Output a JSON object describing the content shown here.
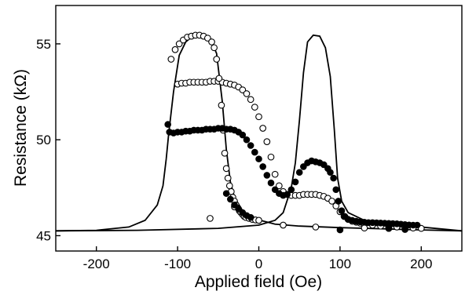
{
  "chart_data": {
    "type": "scatter",
    "title": "",
    "xlabel": "Applied field (Oe)",
    "ylabel": "Resistance (kΩ)",
    "xlim": [
      -250,
      250
    ],
    "ylim": [
      44.2,
      57
    ],
    "xticks": [
      -200,
      -100,
      0,
      100,
      200
    ],
    "yticks": [
      45,
      50,
      55
    ],
    "grid": false,
    "legend": "none",
    "series": [
      {
        "kind": "line",
        "points": [
          [
            -250,
            45.25
          ],
          [
            -200,
            45.28
          ],
          [
            -160,
            45.45
          ],
          [
            -140,
            45.8
          ],
          [
            -125,
            46.6
          ],
          [
            -118,
            47.6
          ],
          [
            -114,
            49.0
          ],
          [
            -111,
            50.3
          ],
          [
            -105,
            52.5
          ],
          [
            -98,
            54.4
          ],
          [
            -90,
            55.1
          ],
          [
            -80,
            55.45
          ],
          [
            -70,
            55.5
          ],
          [
            -60,
            55.3
          ],
          [
            -52,
            54.5
          ],
          [
            -45,
            52.0
          ],
          [
            -40,
            49.5
          ],
          [
            -35,
            47.8
          ],
          [
            -30,
            47.0
          ],
          [
            -20,
            46.3
          ],
          [
            -10,
            46.0
          ],
          [
            0,
            45.82
          ],
          [
            20,
            45.6
          ],
          [
            50,
            45.5
          ],
          [
            100,
            45.42
          ],
          [
            150,
            45.36
          ],
          [
            200,
            45.3
          ],
          [
            250,
            45.25
          ]
        ]
      },
      {
        "kind": "line",
        "points": [
          [
            -250,
            45.25
          ],
          [
            -150,
            45.28
          ],
          [
            -50,
            45.38
          ],
          [
            0,
            45.55
          ],
          [
            20,
            45.8
          ],
          [
            30,
            46.2
          ],
          [
            40,
            47.5
          ],
          [
            45,
            48.8
          ],
          [
            50,
            51.0
          ],
          [
            55,
            53.5
          ],
          [
            60,
            55.1
          ],
          [
            67,
            55.45
          ],
          [
            75,
            55.4
          ],
          [
            82,
            54.8
          ],
          [
            88,
            53.3
          ],
          [
            93,
            50.5
          ],
          [
            97,
            48.0
          ],
          [
            102,
            46.8
          ],
          [
            110,
            46.2
          ],
          [
            130,
            45.8
          ],
          [
            160,
            45.6
          ],
          [
            200,
            45.45
          ],
          [
            250,
            45.25
          ]
        ]
      },
      {
        "kind": "open-markers",
        "points": [
          [
            -100,
            52.9
          ],
          [
            -95,
            52.95
          ],
          [
            -90,
            52.95
          ],
          [
            -85,
            53.0
          ],
          [
            -80,
            53.0
          ],
          [
            -75,
            53.0
          ],
          [
            -70,
            53.0
          ],
          [
            -65,
            53.0
          ],
          [
            -60,
            53.05
          ],
          [
            -55,
            53.05
          ],
          [
            -50,
            53.05
          ],
          [
            -45,
            53.0
          ],
          [
            -40,
            52.95
          ],
          [
            -35,
            52.9
          ],
          [
            -30,
            52.85
          ],
          [
            -25,
            52.75
          ],
          [
            -20,
            52.6
          ],
          [
            -15,
            52.4
          ],
          [
            -10,
            52.1
          ],
          [
            -5,
            51.7
          ],
          [
            0,
            51.2
          ],
          [
            5,
            50.6
          ],
          [
            10,
            49.9
          ],
          [
            15,
            49.1
          ],
          [
            20,
            48.2
          ],
          [
            25,
            47.6
          ],
          [
            30,
            47.3
          ],
          [
            35,
            47.15
          ],
          [
            40,
            47.1
          ],
          [
            45,
            47.1
          ],
          [
            50,
            47.1
          ],
          [
            55,
            47.15
          ],
          [
            60,
            47.15
          ],
          [
            65,
            47.15
          ],
          [
            70,
            47.15
          ],
          [
            75,
            47.1
          ],
          [
            80,
            47.05
          ],
          [
            85,
            46.95
          ],
          [
            90,
            46.8
          ],
          [
            95,
            46.55
          ],
          [
            100,
            46.25
          ],
          [
            105,
            46.0
          ],
          [
            110,
            45.85
          ],
          [
            115,
            45.75
          ],
          [
            120,
            45.7
          ],
          [
            125,
            45.65
          ],
          [
            130,
            45.6
          ],
          [
            140,
            45.55
          ],
          [
            150,
            45.5
          ],
          [
            160,
            45.45
          ],
          [
            170,
            45.45
          ],
          [
            180,
            45.42
          ],
          [
            190,
            45.4
          ],
          [
            200,
            45.38
          ],
          [
            -108,
            54.2
          ],
          [
            -103,
            54.7
          ],
          [
            -98,
            55.0
          ],
          [
            -93,
            55.2
          ],
          [
            -88,
            55.35
          ],
          [
            -83,
            55.4
          ],
          [
            -78,
            55.45
          ],
          [
            -73,
            55.45
          ],
          [
            -68,
            55.4
          ],
          [
            -63,
            55.3
          ],
          [
            -58,
            55.1
          ],
          [
            -55,
            54.8
          ],
          [
            -52,
            54.2
          ],
          [
            -49,
            53.2
          ],
          [
            -46,
            51.8
          ],
          [
            -44,
            50.5
          ],
          [
            -42,
            49.3
          ],
          [
            -40,
            48.5
          ],
          [
            -38,
            48.0
          ],
          [
            -36,
            47.6
          ],
          [
            -34,
            47.3
          ],
          [
            -32,
            47.0
          ],
          [
            -30,
            46.8
          ],
          [
            -28,
            46.6
          ],
          [
            -26,
            46.45
          ],
          [
            -24,
            46.3
          ],
          [
            -22,
            46.2
          ],
          [
            -20,
            46.1
          ],
          [
            -18,
            46.0
          ],
          [
            -16,
            45.95
          ],
          [
            -12,
            45.9
          ],
          [
            -8,
            45.85
          ],
          [
            -4,
            45.82
          ],
          [
            0,
            45.8
          ],
          [
            -60,
            45.9
          ],
          [
            -30,
            46.5
          ],
          [
            30,
            45.55
          ],
          [
            70,
            45.45
          ],
          [
            130,
            45.4
          ],
          [
            160,
            45.38
          ]
        ]
      },
      {
        "kind": "filled-markers",
        "points": [
          [
            -112,
            50.8
          ],
          [
            -110,
            50.4
          ],
          [
            -105,
            50.35
          ],
          [
            -100,
            50.4
          ],
          [
            -95,
            50.4
          ],
          [
            -90,
            50.45
          ],
          [
            -85,
            50.45
          ],
          [
            -80,
            50.5
          ],
          [
            -75,
            50.5
          ],
          [
            -70,
            50.5
          ],
          [
            -65,
            50.55
          ],
          [
            -60,
            50.55
          ],
          [
            -55,
            50.55
          ],
          [
            -50,
            50.6
          ],
          [
            -45,
            50.6
          ],
          [
            -40,
            50.55
          ],
          [
            -35,
            50.55
          ],
          [
            -30,
            50.5
          ],
          [
            -25,
            50.4
          ],
          [
            -20,
            50.25
          ],
          [
            -15,
            50.0
          ],
          [
            -10,
            49.7
          ],
          [
            -5,
            49.35
          ],
          [
            0,
            49.0
          ],
          [
            5,
            48.6
          ],
          [
            10,
            48.15
          ],
          [
            15,
            47.75
          ],
          [
            20,
            47.4
          ],
          [
            25,
            47.2
          ],
          [
            30,
            47.1
          ],
          [
            35,
            47.15
          ],
          [
            40,
            47.4
          ],
          [
            45,
            47.8
          ],
          [
            50,
            48.3
          ],
          [
            55,
            48.6
          ],
          [
            60,
            48.8
          ],
          [
            65,
            48.9
          ],
          [
            70,
            48.85
          ],
          [
            75,
            48.8
          ],
          [
            80,
            48.7
          ],
          [
            85,
            48.5
          ],
          [
            88,
            48.3
          ],
          [
            92,
            48.0
          ],
          [
            95,
            47.4
          ],
          [
            98,
            46.8
          ],
          [
            102,
            46.3
          ],
          [
            106,
            46.0
          ],
          [
            110,
            45.85
          ],
          [
            115,
            45.8
          ],
          [
            120,
            45.75
          ],
          [
            125,
            45.72
          ],
          [
            130,
            45.7
          ],
          [
            135,
            45.68
          ],
          [
            140,
            45.68
          ],
          [
            145,
            45.67
          ],
          [
            150,
            45.66
          ],
          [
            155,
            45.65
          ],
          [
            160,
            45.64
          ],
          [
            165,
            45.63
          ],
          [
            170,
            45.62
          ],
          [
            175,
            45.6
          ],
          [
            180,
            45.58
          ],
          [
            185,
            45.56
          ],
          [
            190,
            45.55
          ],
          [
            195,
            45.55
          ],
          [
            -40,
            47.2
          ],
          [
            -35,
            46.9
          ],
          [
            -30,
            46.6
          ],
          [
            -25,
            46.4
          ],
          [
            -20,
            46.2
          ],
          [
            -15,
            46.05
          ],
          [
            -10,
            45.95
          ],
          [
            100,
            45.3
          ],
          [
            160,
            45.38
          ],
          [
            180,
            45.32
          ]
        ]
      }
    ]
  }
}
